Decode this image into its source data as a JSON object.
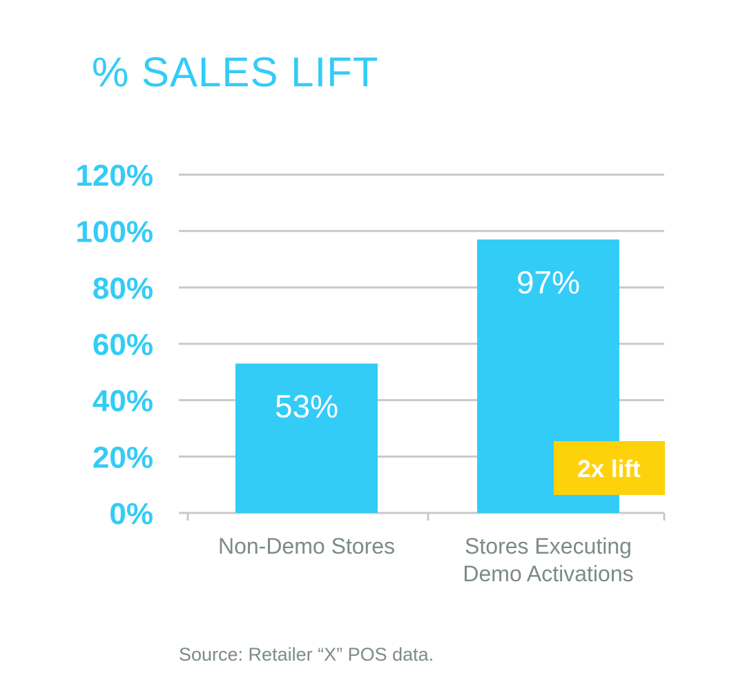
{
  "chart_data": {
    "type": "bar",
    "title": "% SALES LIFT",
    "categories": [
      [
        "Non-Demo Stores"
      ],
      [
        "Stores Executing",
        "Demo Activations"
      ]
    ],
    "values": [
      53,
      97
    ],
    "value_labels": [
      "53%",
      "97%"
    ],
    "ylim": [
      0,
      120
    ],
    "yticks": [
      0,
      20,
      40,
      60,
      80,
      100,
      120
    ],
    "ytick_labels": [
      "0%",
      "20%",
      "40%",
      "60%",
      "80%",
      "100%",
      "120%"
    ],
    "grid": true,
    "annotation": {
      "text": "2x lift",
      "category_index": 1
    },
    "source": "Source: Retailer “X” POS data."
  },
  "colors": {
    "accent": "#33ccf6",
    "bar": "#33ccf6",
    "grid": "#c9c9c9",
    "axis_text": "#33ccf6",
    "category_text": "#7d8a8a",
    "value_text": "#ffffff",
    "annotation_bg": "#fdd20a",
    "annotation_text": "#ffffff",
    "source_text": "#7d8a8a"
  }
}
